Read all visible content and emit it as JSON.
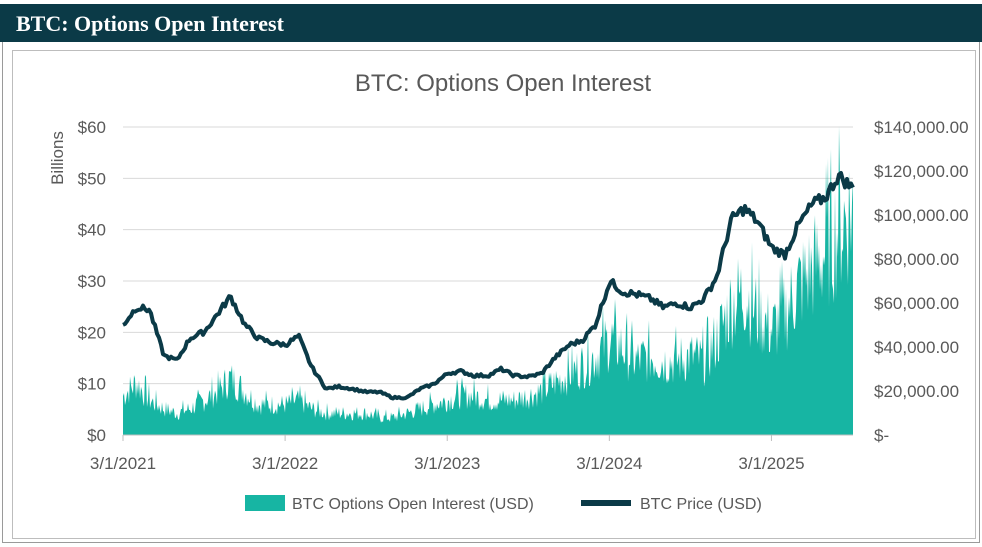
{
  "header": {
    "title": "BTC: Options Open Interest"
  },
  "colors": {
    "header_bg": "#0b3a47",
    "oi_fill": "#17b5a3",
    "price_line": "#0b3a47",
    "grid": "#d9d9d9"
  },
  "chart_data": {
    "type": "area",
    "title": "BTC: Options Open Interest",
    "ylabel": "Billions",
    "left_axis": {
      "ylim": [
        0,
        60
      ],
      "ticks": [
        "$0",
        "$10",
        "$20",
        "$30",
        "$40",
        "$50",
        "$60"
      ]
    },
    "right_axis": {
      "ylim": [
        0,
        140000
      ],
      "ticks": [
        "$-",
        "$20,000.00",
        "$40,000.00",
        "$60,000.00",
        "$80,000.00",
        "$100,000.00",
        "$120,000.00",
        "$140,000.00"
      ]
    },
    "x_ticks": [
      "3/1/2021",
      "3/1/2022",
      "3/1/2023",
      "3/1/2024",
      "3/1/2025"
    ],
    "x_range": [
      2021.167,
      2025.67
    ],
    "legend": {
      "placement": "bottom",
      "entries": [
        "BTC Options Open Interest (USD)",
        "BTC Price (USD)"
      ]
    },
    "series": [
      {
        "name": "BTC Options Open Interest (USD)",
        "axis": "left",
        "x": [
          2021.167,
          2021.25,
          2021.33,
          2021.42,
          2021.5,
          2021.58,
          2021.67,
          2021.75,
          2021.83,
          2021.92,
          2022.0,
          2022.08,
          2022.17,
          2022.25,
          2022.33,
          2022.42,
          2022.5,
          2022.58,
          2022.67,
          2022.75,
          2022.83,
          2022.92,
          2023.0,
          2023.08,
          2023.17,
          2023.25,
          2023.33,
          2023.42,
          2023.5,
          2023.58,
          2023.67,
          2023.75,
          2023.83,
          2023.92,
          2024.0,
          2024.08,
          2024.17,
          2024.25,
          2024.33,
          2024.42,
          2024.5,
          2024.58,
          2024.67,
          2024.75,
          2024.83,
          2024.92,
          2025.0,
          2025.08,
          2025.17,
          2025.25,
          2025.33,
          2025.42,
          2025.5,
          2025.58,
          2025.67
        ],
        "values": [
          9,
          12,
          8,
          6,
          5,
          6,
          8,
          10,
          13,
          10,
          7,
          7,
          7,
          8,
          6,
          5,
          5,
          5,
          5,
          4,
          4,
          5,
          6,
          7,
          8,
          9,
          9,
          8,
          8,
          8,
          9,
          10,
          12,
          14,
          16,
          18,
          22,
          20,
          17,
          18,
          17,
          17,
          18,
          17,
          22,
          30,
          33,
          28,
          24,
          28,
          34,
          38,
          42,
          48,
          52
        ]
      },
      {
        "name": "BTC Price (USD)",
        "axis": "right",
        "x": [
          2021.167,
          2021.25,
          2021.33,
          2021.42,
          2021.5,
          2021.58,
          2021.67,
          2021.75,
          2021.83,
          2021.92,
          2022.0,
          2022.08,
          2022.17,
          2022.25,
          2022.33,
          2022.42,
          2022.5,
          2022.58,
          2022.67,
          2022.75,
          2022.83,
          2022.92,
          2023.0,
          2023.08,
          2023.17,
          2023.25,
          2023.33,
          2023.42,
          2023.5,
          2023.58,
          2023.67,
          2023.75,
          2023.83,
          2023.92,
          2024.0,
          2024.08,
          2024.17,
          2024.25,
          2024.33,
          2024.42,
          2024.5,
          2024.58,
          2024.67,
          2024.75,
          2024.83,
          2024.92,
          2025.0,
          2025.08,
          2025.17,
          2025.25,
          2025.33,
          2025.42,
          2025.5,
          2025.58,
          2025.67
        ],
        "values": [
          50000,
          58000,
          57000,
          36000,
          34000,
          44000,
          47000,
          55000,
          63000,
          50000,
          44000,
          42000,
          41000,
          45000,
          31000,
          21000,
          22000,
          21000,
          19500,
          19500,
          17000,
          17000,
          21000,
          23000,
          28000,
          29000,
          27000,
          27000,
          30000,
          27000,
          26500,
          28000,
          35000,
          41000,
          43000,
          50000,
          70000,
          65000,
          64000,
          62000,
          58000,
          60000,
          58000,
          62000,
          72000,
          98000,
          103000,
          97000,
          85000,
          82000,
          95000,
          105000,
          108000,
          118000,
          112000
        ]
      }
    ]
  }
}
